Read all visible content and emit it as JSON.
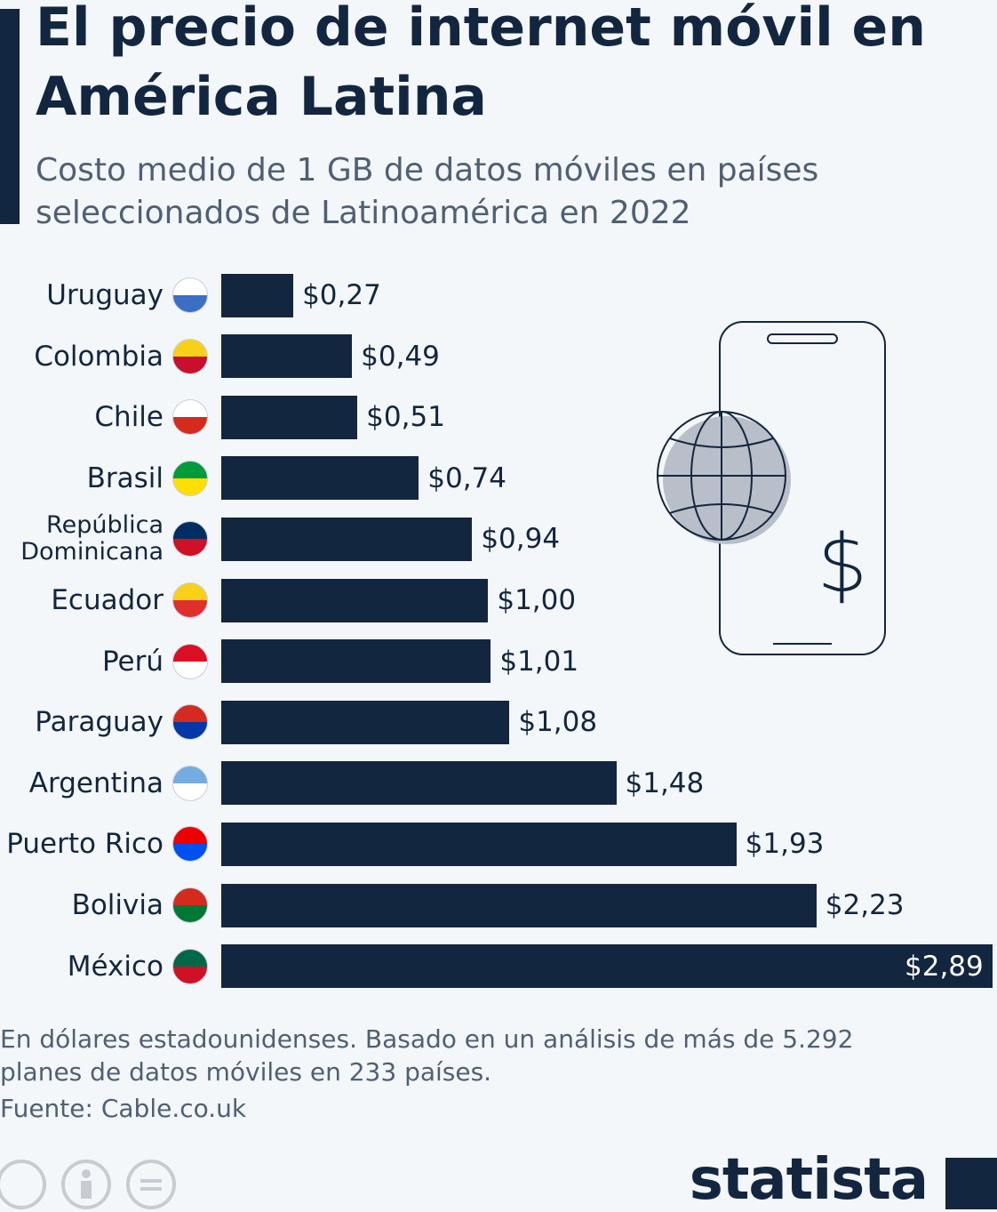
{
  "chart_data": {
    "type": "bar",
    "orientation": "horizontal",
    "title": "El precio de internet móvil en América Latina",
    "subtitle": "Costo medio de 1 GB de datos móviles en países seleccionados de Latinoamérica en 2022",
    "categories": [
      "Uruguay",
      "Colombia",
      "Chile",
      "Brasil",
      "República Dominicana",
      "Ecuador",
      "Perú",
      "Paraguay",
      "Argentina",
      "Puerto Rico",
      "Bolivia",
      "México"
    ],
    "values": [
      0.27,
      0.49,
      0.51,
      0.74,
      0.94,
      1.0,
      1.01,
      1.08,
      1.48,
      1.93,
      2.23,
      2.89
    ],
    "value_labels": [
      "$0,27",
      "$0,49",
      "$0,51",
      "$0,74",
      "$0,94",
      "$1,00",
      "$1,01",
      "$1,08",
      "$1,48",
      "$1,93",
      "$2,23",
      "$2,89"
    ],
    "color": "#12263f",
    "note": "En dólares estadounidenses. Basado en un análisis de más de 5.292 planes de datos móviles en 233 países.",
    "source": "Fuente: Cable.co.uk"
  },
  "illustration": {
    "symbol": "$"
  },
  "brand": "statista"
}
